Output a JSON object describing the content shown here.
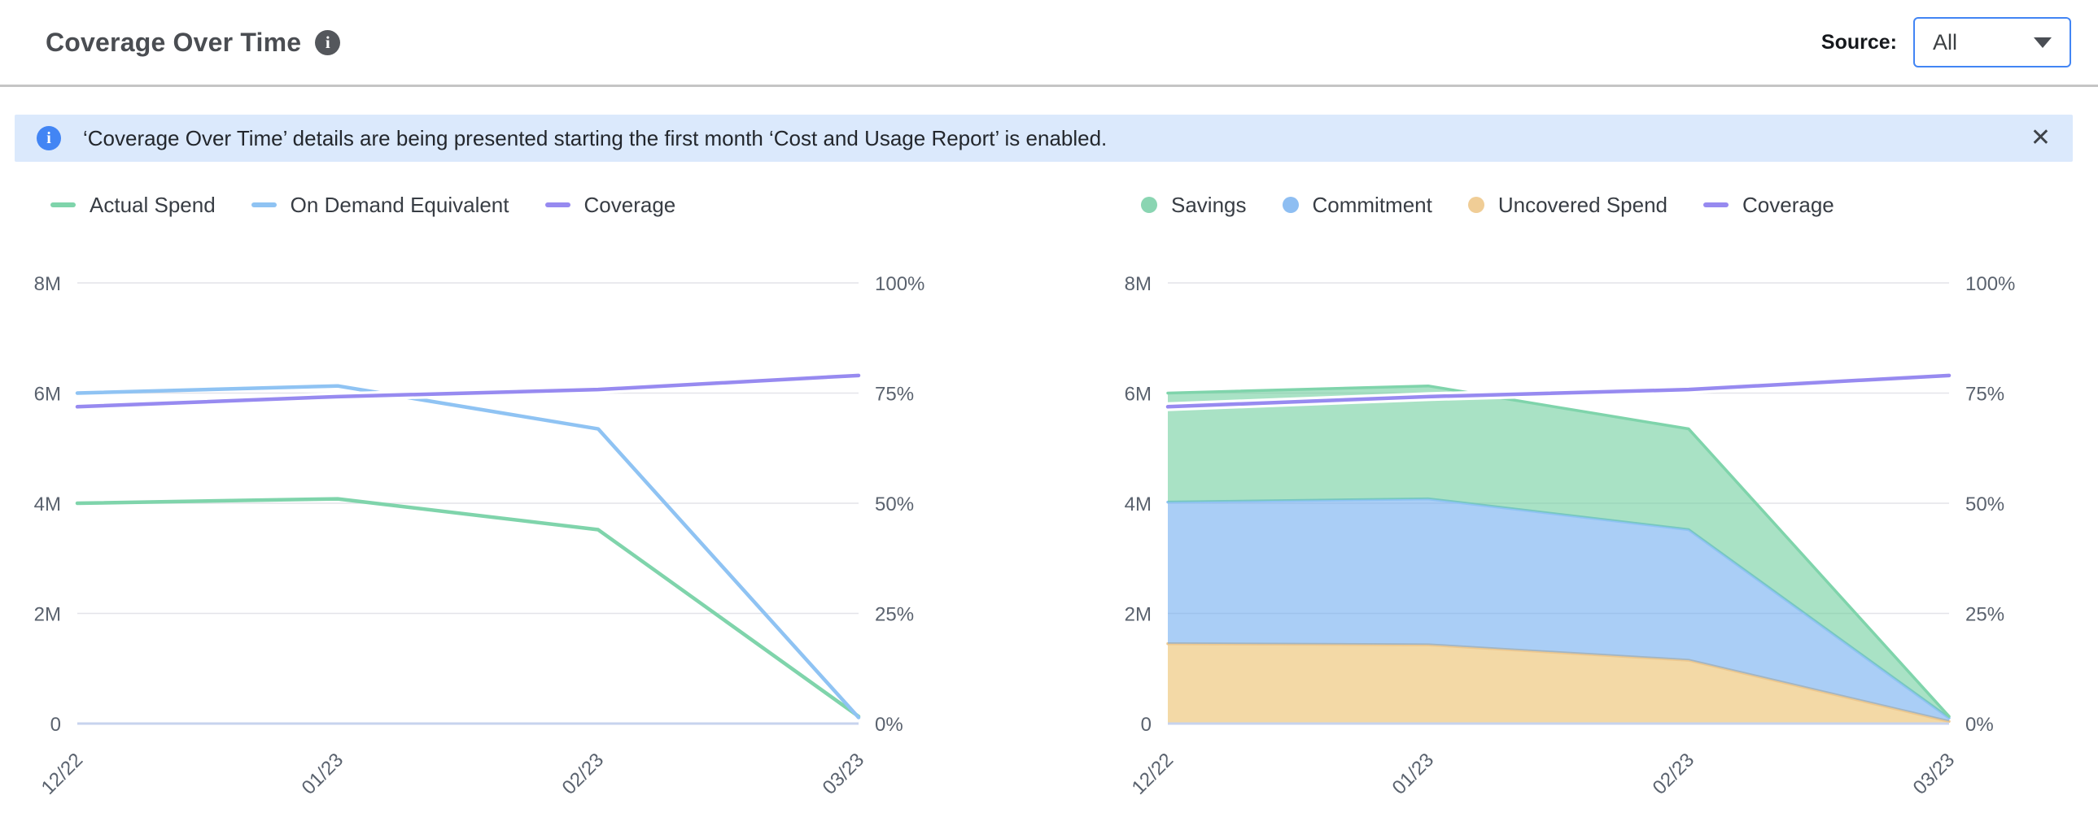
{
  "header": {
    "title": "Coverage Over Time",
    "source_label": "Source:",
    "source_value": "All"
  },
  "icons": {
    "info_glyph": "i",
    "close_glyph": "✕"
  },
  "banner": {
    "message": "‘Coverage Over Time’ details are being presented starting the first month ‘Cost and Usage Report’ is enabled."
  },
  "colors": {
    "green_line": "#7fd4ab",
    "blue_line": "#8fc3f3",
    "purple_line": "#978af0",
    "green_fill": "#62cb96",
    "blue_fill": "#64a5ee",
    "orange_fill": "#eab95c",
    "orange_stroke": "#edc88f",
    "gridline": "#e4e4e9",
    "zero_axis": "#c7d3ee",
    "axis_text": "#5a626e",
    "accent_blue": "#4285f4",
    "banner_bg": "#dbe9fc"
  },
  "chart_data": [
    {
      "type": "line",
      "title": "",
      "categories": [
        "12/22",
        "01/23",
        "02/23",
        "03/23"
      ],
      "grid": true,
      "legend_position": "top",
      "left_axis": {
        "max": 8000000,
        "ticks": [
          {
            "value": 8000000,
            "label": "8M"
          },
          {
            "value": 6000000,
            "label": "6M"
          },
          {
            "value": 4000000,
            "label": "4M"
          },
          {
            "value": 2000000,
            "label": "2M"
          },
          {
            "value": 0,
            "label": "0"
          }
        ]
      },
      "right_axis": {
        "max": 100,
        "ticks": [
          {
            "value": 100,
            "label": "100%"
          },
          {
            "value": 75,
            "label": "75%"
          },
          {
            "value": 50,
            "label": "50%"
          },
          {
            "value": 25,
            "label": "25%"
          },
          {
            "value": 0,
            "label": "0%"
          }
        ]
      },
      "series": [
        {
          "name": "Actual Spend",
          "kind": "line",
          "axis": "left",
          "color": "#7fd4ab",
          "values": [
            4000000,
            4080000,
            3520000,
            130000
          ]
        },
        {
          "name": "On Demand Equivalent",
          "kind": "line",
          "axis": "left",
          "color": "#8fc3f3",
          "values": [
            6000000,
            6130000,
            5350000,
            110000
          ]
        },
        {
          "name": "Coverage",
          "kind": "line",
          "axis": "right",
          "color": "#978af0",
          "halo": true,
          "values": [
            71.9,
            74.2,
            75.8,
            79
          ]
        }
      ],
      "legend": [
        {
          "label": "Actual Spend",
          "marker": "line",
          "color": "#7fd4ab"
        },
        {
          "label": "On Demand Equivalent",
          "marker": "line",
          "color": "#8fc3f3"
        },
        {
          "label": "Coverage",
          "marker": "line",
          "color": "#978af0"
        }
      ]
    },
    {
      "type": "area",
      "title": "",
      "categories": [
        "12/22",
        "01/23",
        "02/23",
        "03/23"
      ],
      "grid": true,
      "legend_position": "top",
      "stacked": true,
      "left_axis": {
        "max": 8000000,
        "ticks": [
          {
            "value": 8000000,
            "label": "8M"
          },
          {
            "value": 6000000,
            "label": "6M"
          },
          {
            "value": 4000000,
            "label": "4M"
          },
          {
            "value": 2000000,
            "label": "2M"
          },
          {
            "value": 0,
            "label": "0"
          }
        ]
      },
      "right_axis": {
        "max": 100,
        "ticks": [
          {
            "value": 100,
            "label": "100%"
          },
          {
            "value": 75,
            "label": "75%"
          },
          {
            "value": 50,
            "label": "50%"
          },
          {
            "value": 25,
            "label": "25%"
          },
          {
            "value": 0,
            "label": "0%"
          }
        ]
      },
      "series": [
        {
          "name": "Uncovered Spend",
          "kind": "area",
          "axis": "left",
          "fill": "#eab95c",
          "stroke": "#edc88f",
          "values_top": [
            1450000,
            1430000,
            1150000,
            40000
          ]
        },
        {
          "name": "Commitment",
          "kind": "area",
          "axis": "left",
          "fill": "#64a5ee",
          "stroke": "#8fc3f3",
          "values_top": [
            4020000,
            4080000,
            3520000,
            100000
          ]
        },
        {
          "name": "Savings",
          "kind": "area",
          "axis": "left",
          "fill": "#62cb96",
          "stroke": "#7fd4ab",
          "values_top": [
            6000000,
            6130000,
            5350000,
            130000
          ]
        },
        {
          "name": "Coverage",
          "kind": "line",
          "axis": "right",
          "color": "#978af0",
          "halo": true,
          "values": [
            71.9,
            74.2,
            75.8,
            79
          ]
        }
      ],
      "legend": [
        {
          "label": "Savings",
          "marker": "dot",
          "color": "#8ad5b2"
        },
        {
          "label": "Commitment",
          "marker": "dot",
          "color": "#8ebef2"
        },
        {
          "label": "Uncovered Spend",
          "marker": "dot",
          "color": "#f0cd96"
        },
        {
          "label": "Coverage",
          "marker": "line",
          "color": "#978af0"
        }
      ]
    }
  ]
}
